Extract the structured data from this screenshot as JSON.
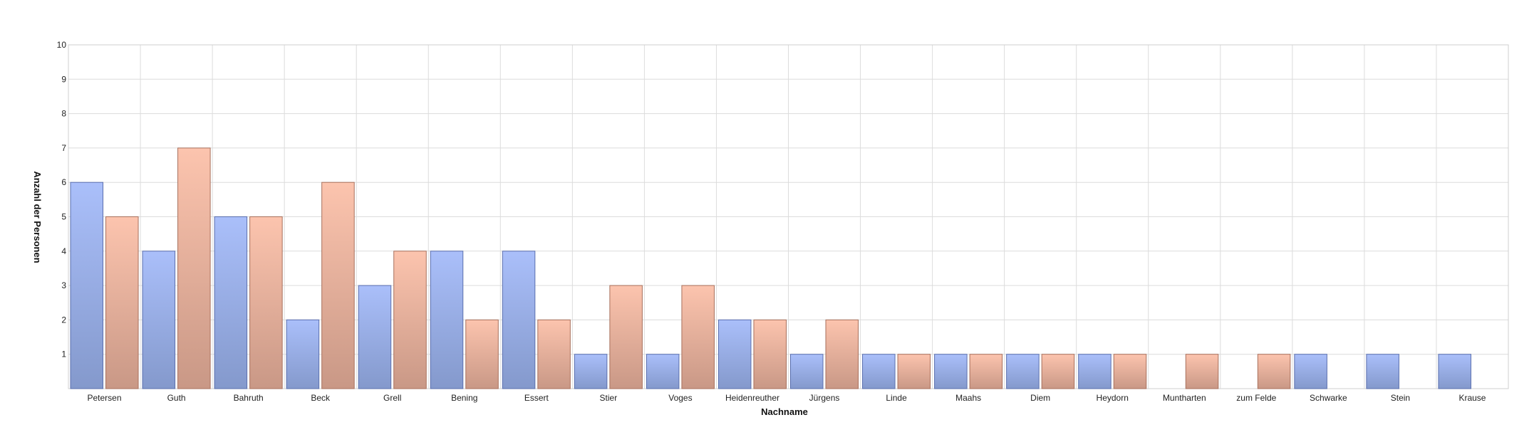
{
  "chart_data": {
    "type": "bar",
    "title": "",
    "xlabel": "Nachname",
    "ylabel": "Anzahl der Personen",
    "ylim": [
      0,
      10
    ],
    "yticks": [
      1,
      2,
      3,
      4,
      5,
      6,
      7,
      8,
      9,
      10
    ],
    "grid": true,
    "legend": "none",
    "categories": [
      "Petersen",
      "Guth",
      "Bahruth",
      "Beck",
      "Grell",
      "Bening",
      "Essert",
      "Stier",
      "Voges",
      "Heidenreuther",
      "Jürgens",
      "Linde",
      "Maahs",
      "Diem",
      "Heydorn",
      "Muntharten",
      "zum Felde",
      "Schwarke",
      "Stein",
      "Krause"
    ],
    "series": [
      {
        "values": [
          6,
          4,
          5,
          2,
          3,
          4,
          4,
          1,
          1,
          2,
          1,
          1,
          1,
          1,
          1,
          0,
          0,
          1,
          1,
          1
        ],
        "color_top": "#aabffa",
        "color_bottom": "#8499cc",
        "stroke": "#5a6fae"
      },
      {
        "values": [
          5,
          7,
          5,
          6,
          4,
          2,
          2,
          3,
          3,
          2,
          2,
          1,
          1,
          1,
          1,
          1,
          1,
          0,
          0,
          0
        ],
        "color_top": "#fcc4ae",
        "color_bottom": "#c99886",
        "stroke": "#a8705c"
      }
    ]
  }
}
